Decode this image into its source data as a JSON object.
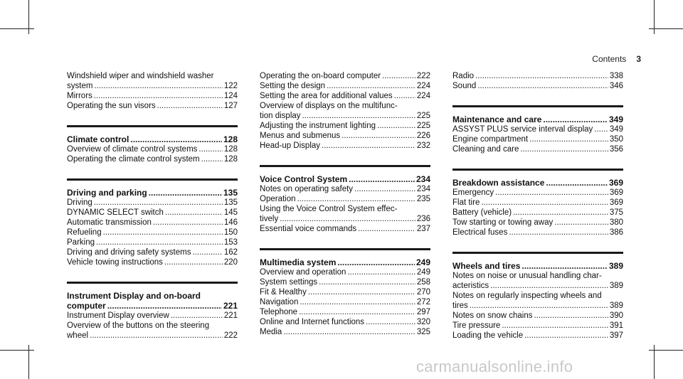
{
  "header": {
    "title": "Contents",
    "page": "3"
  },
  "watermark": "carmanualsonline.info",
  "columns": [
    {
      "sections": [
        {
          "heading": null,
          "entries": [
            {
              "lines": [
                "Windshield wiper and windshield washer",
                "system"
              ],
              "page": "122"
            },
            {
              "lines": [
                "Mirrors"
              ],
              "page": "124"
            },
            {
              "lines": [
                "Operating the sun visors"
              ],
              "page": "127"
            }
          ]
        },
        {
          "heading": {
            "lines": [
              "Climate control"
            ],
            "page": "128"
          },
          "entries": [
            {
              "lines": [
                "Overview of climate control systems"
              ],
              "page": "128"
            },
            {
              "lines": [
                "Operating the climate control system"
              ],
              "page": "128"
            }
          ]
        },
        {
          "heading": {
            "lines": [
              "Driving and parking"
            ],
            "page": "135"
          },
          "entries": [
            {
              "lines": [
                "Driving"
              ],
              "page": "135"
            },
            {
              "lines": [
                "DYNAMIC SELECT switch"
              ],
              "page": "145"
            },
            {
              "lines": [
                "Automatic transmission"
              ],
              "page": "146"
            },
            {
              "lines": [
                "Refueling"
              ],
              "page": "150"
            },
            {
              "lines": [
                "Parking"
              ],
              "page": "153"
            },
            {
              "lines": [
                "Driving and driving safety systems"
              ],
              "page": "162"
            },
            {
              "lines": [
                "Vehicle towing instructions"
              ],
              "page": "220"
            }
          ]
        },
        {
          "heading": {
            "lines": [
              "Instrument Display and on-board",
              "computer"
            ],
            "page": "221"
          },
          "entries": [
            {
              "lines": [
                "Instrument Display overview"
              ],
              "page": "221"
            },
            {
              "lines": [
                "Overview of the buttons on the steering",
                "wheel"
              ],
              "page": "222"
            }
          ]
        }
      ]
    },
    {
      "sections": [
        {
          "heading": null,
          "entries": [
            {
              "lines": [
                "Operating the on-board computer"
              ],
              "page": "222"
            },
            {
              "lines": [
                "Setting the design"
              ],
              "page": "224"
            },
            {
              "lines": [
                "Setting the area for additional values"
              ],
              "page": "224"
            },
            {
              "lines": [
                "Overview of displays on the multifunc-",
                "tion display"
              ],
              "page": "225"
            },
            {
              "lines": [
                "Adjusting the instrument lighting"
              ],
              "page": "225"
            },
            {
              "lines": [
                "Menus and submenus"
              ],
              "page": "226"
            },
            {
              "lines": [
                "Head-up Display"
              ],
              "page": "232"
            }
          ]
        },
        {
          "heading": {
            "lines": [
              "Voice Control System"
            ],
            "page": "234"
          },
          "entries": [
            {
              "lines": [
                "Notes on operating safety"
              ],
              "page": "234"
            },
            {
              "lines": [
                "Operation"
              ],
              "page": "235"
            },
            {
              "lines": [
                "Using the Voice Control System effec-",
                "tively"
              ],
              "page": "236"
            },
            {
              "lines": [
                "Essential voice commands"
              ],
              "page": "237"
            }
          ]
        },
        {
          "heading": {
            "lines": [
              "Multimedia system"
            ],
            "page": "249"
          },
          "entries": [
            {
              "lines": [
                "Overview and operation"
              ],
              "page": "249"
            },
            {
              "lines": [
                "System settings"
              ],
              "page": "258"
            },
            {
              "lines": [
                "Fit & Healthy"
              ],
              "page": "270"
            },
            {
              "lines": [
                "Navigation"
              ],
              "page": "272"
            },
            {
              "lines": [
                "Telephone"
              ],
              "page": "297"
            },
            {
              "lines": [
                "Online and Internet functions"
              ],
              "page": "320"
            },
            {
              "lines": [
                "Media"
              ],
              "page": "325"
            }
          ]
        }
      ]
    },
    {
      "sections": [
        {
          "heading": null,
          "entries": [
            {
              "lines": [
                "Radio"
              ],
              "page": "338"
            },
            {
              "lines": [
                "Sound"
              ],
              "page": "346"
            }
          ]
        },
        {
          "heading": {
            "lines": [
              "Maintenance and care"
            ],
            "page": "349"
          },
          "entries": [
            {
              "lines": [
                "ASSYST PLUS service interval display"
              ],
              "page": "349"
            },
            {
              "lines": [
                "Engine compartment"
              ],
              "page": "350"
            },
            {
              "lines": [
                "Cleaning and care"
              ],
              "page": "356"
            }
          ]
        },
        {
          "heading": {
            "lines": [
              "Breakdown assistance"
            ],
            "page": "369"
          },
          "entries": [
            {
              "lines": [
                "Emergency"
              ],
              "page": "369"
            },
            {
              "lines": [
                "Flat tire"
              ],
              "page": "369"
            },
            {
              "lines": [
                "Battery (vehicle)"
              ],
              "page": "375"
            },
            {
              "lines": [
                "Tow starting or towing away"
              ],
              "page": "380"
            },
            {
              "lines": [
                "Electrical fuses"
              ],
              "page": "386"
            }
          ]
        },
        {
          "heading": {
            "lines": [
              "Wheels and tires"
            ],
            "page": "389"
          },
          "entries": [
            {
              "lines": [
                "Notes on noise or unusual handling char-",
                "acteristics"
              ],
              "page": "389"
            },
            {
              "lines": [
                "Notes on regularly inspecting wheels and",
                "tires"
              ],
              "page": "389"
            },
            {
              "lines": [
                "Notes on snow chains"
              ],
              "page": "390"
            },
            {
              "lines": [
                "Tire pressure"
              ],
              "page": "391"
            },
            {
              "lines": [
                "Loading the vehicle"
              ],
              "page": "397"
            }
          ]
        }
      ]
    }
  ]
}
